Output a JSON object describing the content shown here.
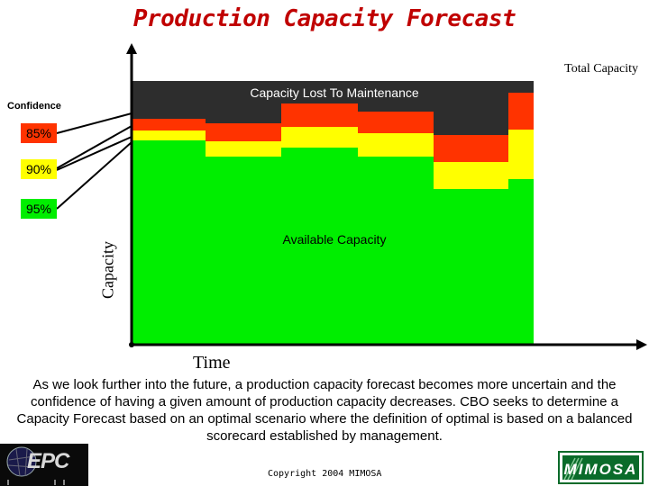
{
  "header": {
    "title": "Production Capacity Forecast"
  },
  "diagram": {
    "total_capacity_label": "Total Capacity",
    "capacity_lost_label": "Capacity Lost To Maintenance",
    "available_capacity_label": "Available Capacity",
    "confidence_label": "Confidence",
    "confidence_levels": [
      "85%",
      "90%",
      "95%"
    ],
    "y_axis_label": "Capacity",
    "x_axis_label": "Time",
    "colors": {
      "maintenance": "#2d2d2d",
      "conf_85": "#ff3300",
      "conf_90": "#ffff00",
      "conf_95": "#00ee00",
      "axis": "#000000"
    }
  },
  "description": "As we look further into the future, a production capacity forecast becomes more uncertain and the confidence of having a given amount of production capacity decreases.  CBO seeks to determine a Capacity Forecast based on an optimal scenario where the definition of optimal is based on a balanced scorecard established by management.",
  "footer": {
    "copyright": "Copyright 2004 MIMOSA",
    "logo_left_text": "EPC",
    "logo_right_text": "MIMOSA"
  }
}
